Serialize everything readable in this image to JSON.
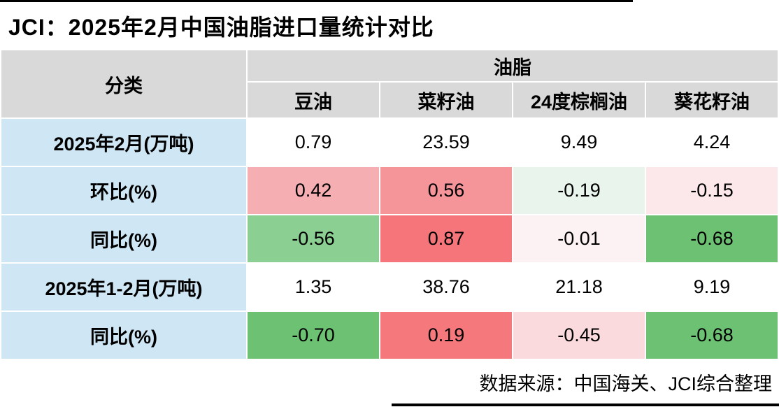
{
  "title": "JCI：2025年2月中国油脂进口量统计对比",
  "footer": "数据来源：中国海关、JCI综合整理",
  "colors": {
    "header_bg": "#d9d9d9",
    "row_label_bg": "#cfe7f5",
    "grid": "#ffffff",
    "strong_green": "#6cc173",
    "medium_green": "#8ccf92",
    "pale_green": "#e9f4ec",
    "strong_red": "#f5757b",
    "medium_red": "#f5959a",
    "light_red": "#f5aeb2",
    "pale_red": "#fce8ea"
  },
  "table": {
    "category_header": "分类",
    "group_header": "油脂",
    "columns": [
      "豆油",
      "菜籽油",
      "24度棕榈油",
      "葵花籽油"
    ],
    "rows": [
      {
        "label": "2025年2月(万吨)",
        "values": [
          "0.79",
          "23.59",
          "9.49",
          "4.24"
        ],
        "colors": [
          "#ffffff",
          "#ffffff",
          "#ffffff",
          "#ffffff"
        ]
      },
      {
        "label": "环比(%)",
        "values": [
          "0.42",
          "0.56",
          "-0.19",
          "-0.15"
        ],
        "colors": [
          "#f5aeb2",
          "#f5959a",
          "#e9f4ec",
          "#fce8ea"
        ]
      },
      {
        "label": "同比(%)",
        "values": [
          "-0.56",
          "0.87",
          "-0.01",
          "-0.68"
        ],
        "colors": [
          "#8ccf92",
          "#f5757b",
          "#fdf2f3",
          "#6cc173"
        ]
      },
      {
        "label": "2025年1-2月(万吨)",
        "values": [
          "1.35",
          "38.76",
          "21.18",
          "9.19"
        ],
        "colors": [
          "#ffffff",
          "#ffffff",
          "#ffffff",
          "#ffffff"
        ]
      },
      {
        "label": "同比(%)",
        "values": [
          "-0.70",
          "0.19",
          "-0.45",
          "-0.68"
        ],
        "colors": [
          "#6cc173",
          "#f5787d",
          "#fadadd",
          "#6cc173"
        ]
      }
    ]
  },
  "chart_data": {
    "type": "table",
    "title": "JCI：2025年2月中国油脂进口量统计对比",
    "row_header": "分类",
    "group_header": "油脂",
    "columns": [
      "豆油",
      "菜籽油",
      "24度棕榈油",
      "葵花籽油"
    ],
    "rows": [
      {
        "label": "2025年2月(万吨)",
        "values": [
          0.79,
          23.59,
          9.49,
          4.24
        ]
      },
      {
        "label": "环比(%)",
        "values": [
          0.42,
          0.56,
          -0.19,
          -0.15
        ]
      },
      {
        "label": "同比(%)",
        "values": [
          -0.56,
          0.87,
          -0.01,
          -0.68
        ]
      },
      {
        "label": "2025年1-2月(万吨)",
        "values": [
          1.35,
          38.76,
          21.18,
          9.19
        ]
      },
      {
        "label": "同比(%)",
        "values": [
          -0.7,
          0.19,
          -0.45,
          -0.68
        ]
      }
    ],
    "source_note": "数据来源：中国海关、JCI综合整理",
    "notes": "Cell shading is a red-white-green conditional color scale on percent-change rows; row labels shaded light blue; headers gray."
  }
}
